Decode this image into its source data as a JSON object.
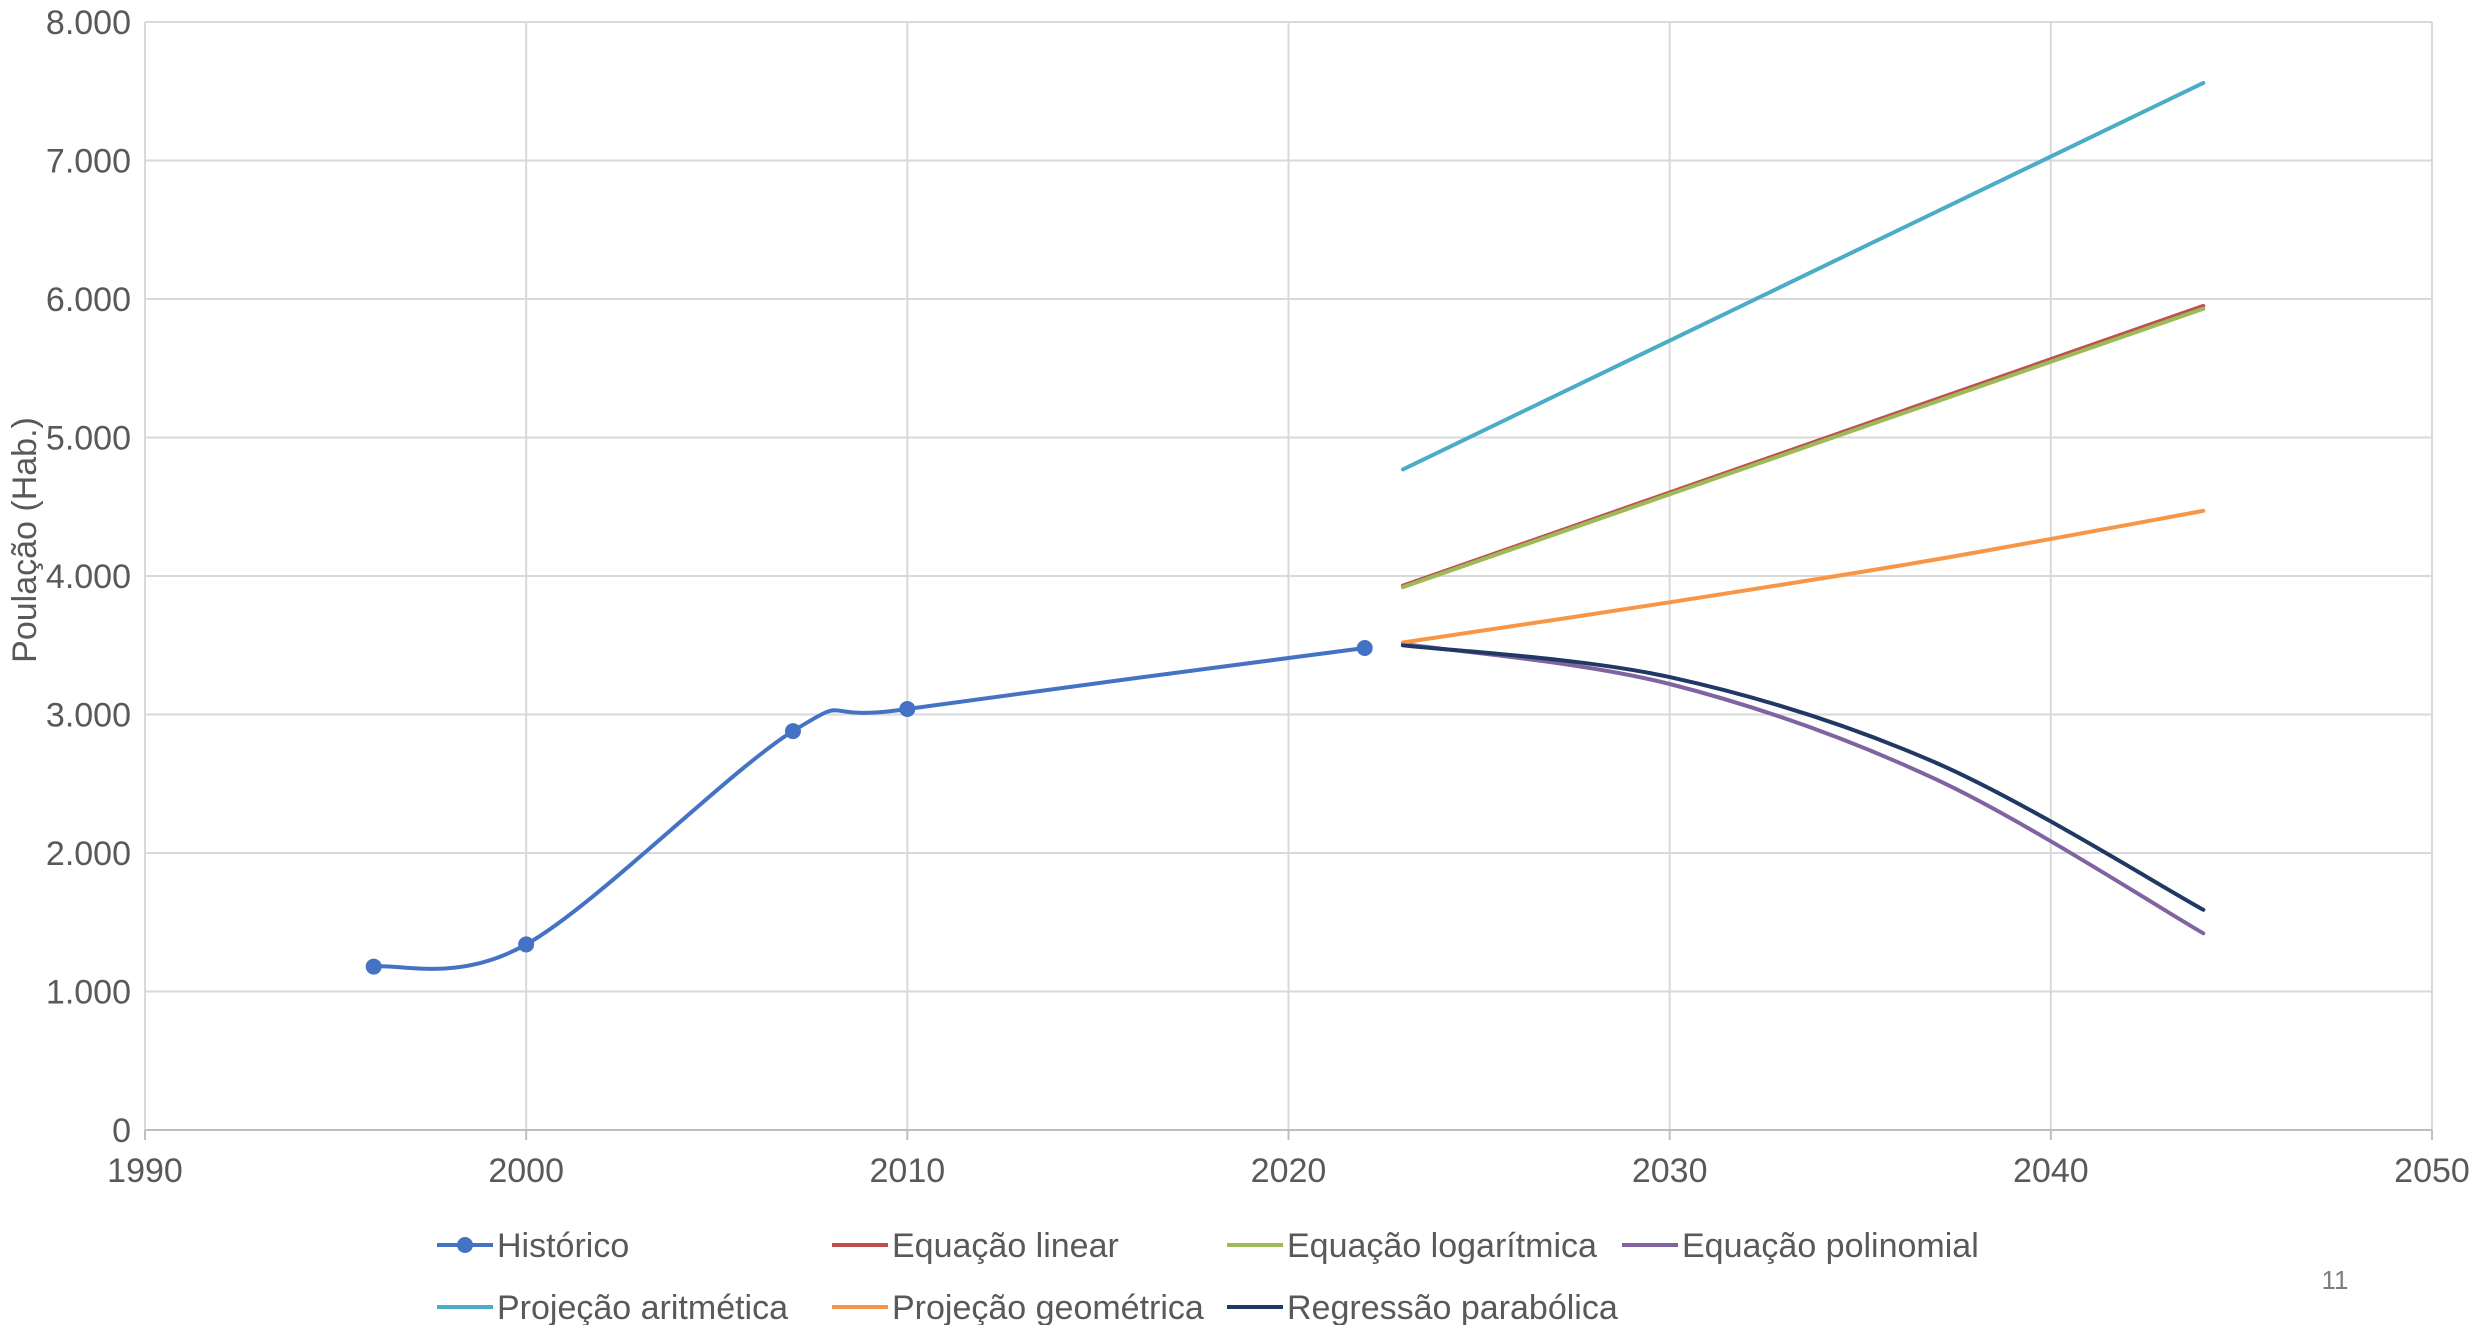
{
  "chart_data": {
    "type": "line",
    "title": "",
    "xlabel": "",
    "ylabel": "Poulação (Hab.)",
    "xlim": [
      1990,
      2050
    ],
    "ylim": [
      0,
      8000
    ],
    "x_ticks": [
      1990,
      2000,
      2010,
      2020,
      2030,
      2040,
      2050
    ],
    "x_tick_labels": [
      "1990",
      "2000",
      "2010",
      "2020",
      "2030",
      "2040",
      "2050"
    ],
    "y_ticks": [
      0,
      1000,
      2000,
      3000,
      4000,
      5000,
      6000,
      7000,
      8000
    ],
    "y_tick_labels": [
      "0",
      "1.000",
      "2.000",
      "3.000",
      "4.000",
      "5.000",
      "6.000",
      "7.000",
      "8.000"
    ],
    "grid": true,
    "legend_position": "bottom",
    "series": [
      {
        "name": "Histórico",
        "color": "#4472C4",
        "markers": true,
        "smooth": true,
        "points": [
          [
            1996,
            1180
          ],
          [
            2000,
            1340
          ],
          [
            2007,
            2880
          ],
          [
            2010,
            3040
          ],
          [
            2022,
            3480
          ]
        ]
      },
      {
        "name": "Equação linear",
        "color": "#C0504D",
        "markers": false,
        "smooth": false,
        "points": [
          [
            2023,
            3930
          ],
          [
            2044,
            5950
          ]
        ]
      },
      {
        "name": "Equação logarítmica",
        "color": "#9BBB59",
        "markers": false,
        "smooth": false,
        "points": [
          [
            2023,
            3920
          ],
          [
            2044,
            5930
          ]
        ]
      },
      {
        "name": "Equação polinomial",
        "color": "#8064A2",
        "markers": false,
        "smooth": true,
        "points": [
          [
            2023,
            3510
          ],
          [
            2030,
            3220
          ],
          [
            2037,
            2530
          ],
          [
            2044,
            1420
          ]
        ]
      },
      {
        "name": "Projeção aritmética",
        "color": "#4BACC6",
        "markers": false,
        "smooth": false,
        "points": [
          [
            2023,
            4770
          ],
          [
            2044,
            7560
          ]
        ]
      },
      {
        "name": "Projeção geométrica",
        "color": "#F79646",
        "markers": false,
        "smooth": true,
        "points": [
          [
            2023,
            3520
          ],
          [
            2030,
            3810
          ],
          [
            2037,
            4120
          ],
          [
            2044,
            4470
          ]
        ]
      },
      {
        "name": "Regressão parabólica",
        "color": "#1F3864",
        "markers": false,
        "smooth": true,
        "points": [
          [
            2023,
            3500
          ],
          [
            2030,
            3270
          ],
          [
            2037,
            2650
          ],
          [
            2044,
            1590
          ]
        ]
      }
    ]
  },
  "page_number": "11"
}
